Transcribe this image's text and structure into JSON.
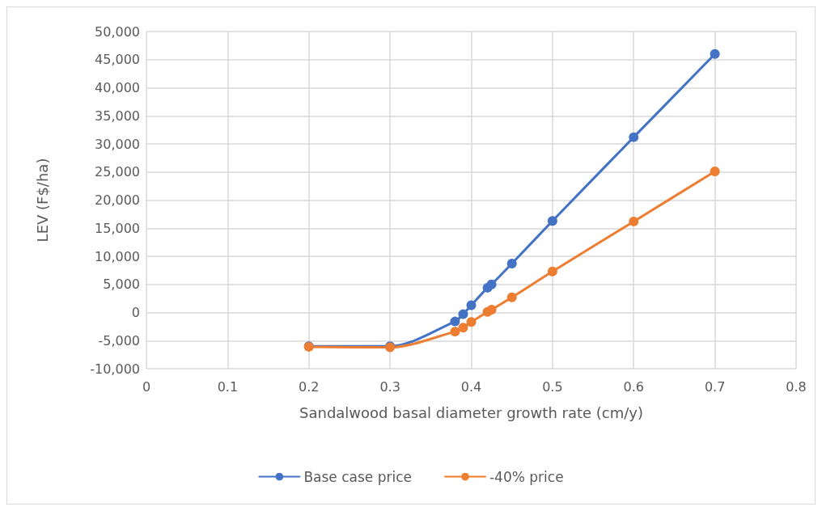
{
  "chart_data": {
    "type": "line",
    "xlabel": "Sandalwood basal diameter growth rate (cm/y)",
    "ylabel": "LEV (F$/ha)",
    "x": [
      0.2,
      0.3,
      0.38,
      0.39,
      0.4,
      0.42,
      0.425,
      0.45,
      0.5,
      0.6,
      0.7
    ],
    "series": [
      {
        "name": "Base case price",
        "color": "#4472c4",
        "values": [
          -6000,
          -6000,
          -1600,
          -300,
          1300,
          4400,
          5000,
          8700,
          16300,
          31200,
          46000
        ]
      },
      {
        "name": "-40% price",
        "color": "#ed7d31",
        "values": [
          -6100,
          -6200,
          -3400,
          -2700,
          -1700,
          100,
          500,
          2700,
          7300,
          16200,
          25100
        ]
      }
    ],
    "xlim": [
      0,
      0.8
    ],
    "xticks": [
      0,
      0.1,
      0.2,
      0.3,
      0.4,
      0.5,
      0.6,
      0.7,
      0.8
    ],
    "ylim": [
      -10000,
      50000
    ],
    "yticks": [
      {
        "value": -10000,
        "label": "-10,000"
      },
      {
        "value": -5000,
        "label": "-5,000"
      },
      0,
      {
        "value": 5000,
        "label": "5,000"
      },
      {
        "value": 10000,
        "label": "10,000"
      },
      {
        "value": 15000,
        "label": "15,000"
      },
      {
        "value": 20000,
        "label": "20,000"
      },
      {
        "value": 25000,
        "label": "25,000"
      },
      {
        "value": 30000,
        "label": "30,000"
      },
      {
        "value": 35000,
        "label": "35,000"
      },
      {
        "value": 40000,
        "label": "40,000"
      },
      {
        "value": 45000,
        "label": "45,000"
      },
      {
        "value": 50000,
        "label": "50,000"
      }
    ],
    "grid": true,
    "legend": "bottom",
    "marker": "circle",
    "line_style": "solid"
  }
}
